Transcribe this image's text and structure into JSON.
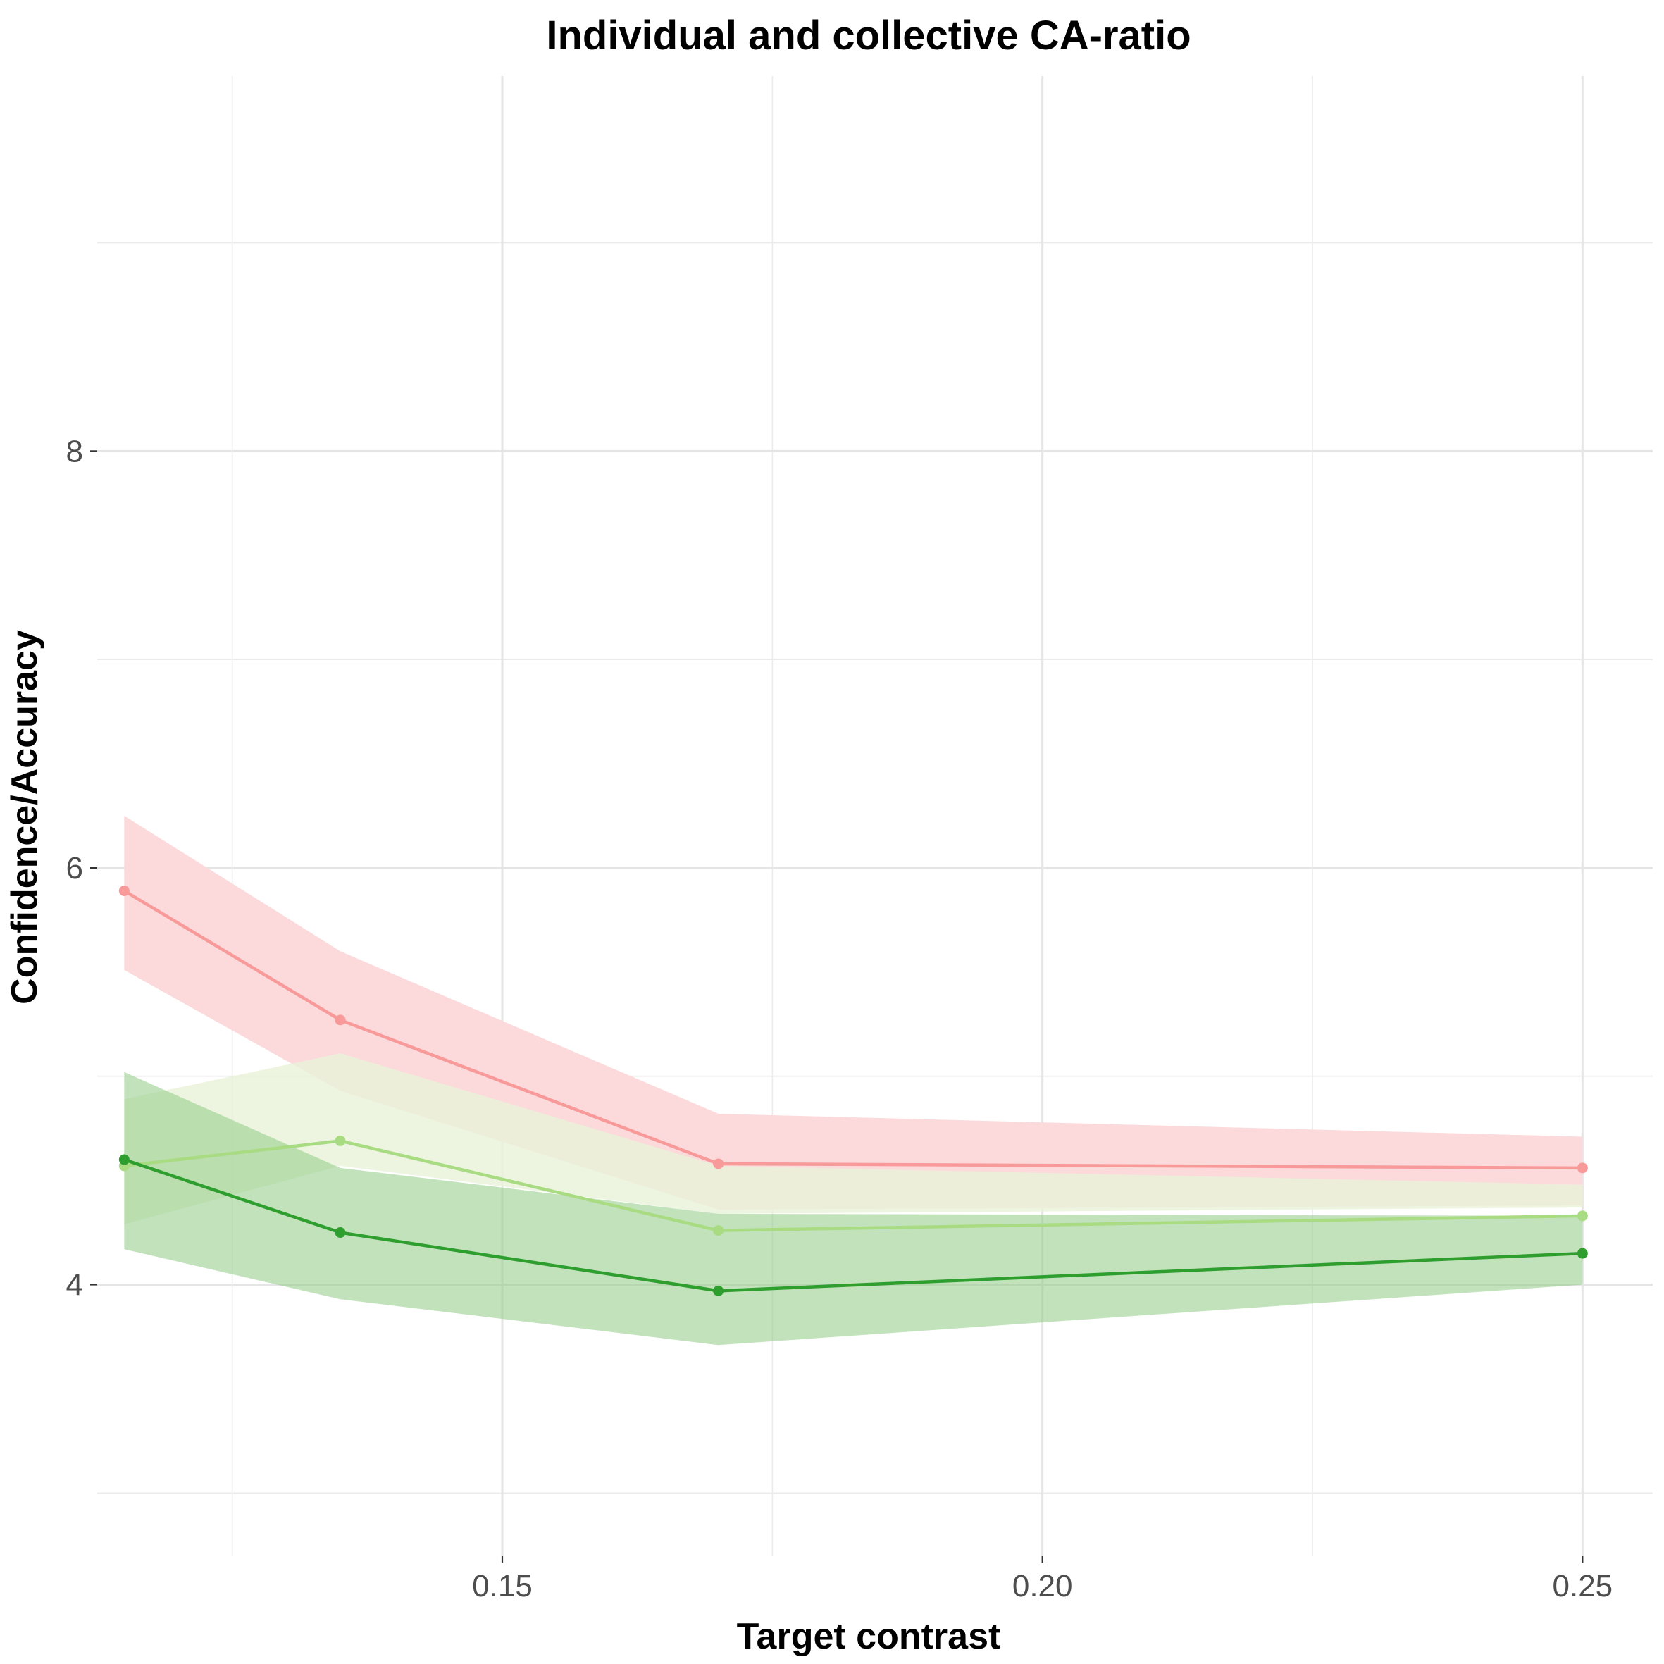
{
  "chart_data": {
    "type": "line",
    "title": "Individual and collective CA-ratio",
    "xlabel": "Target contrast",
    "ylabel": "Confidence/Accuracy",
    "xlim": [
      0.1125,
      0.2565
    ],
    "ylim": [
      2.7,
      9.8
    ],
    "x_ticks": [
      0.15,
      0.2,
      0.25
    ],
    "x_tick_labels": [
      "0.15",
      "0.20",
      "0.25"
    ],
    "x_minor_gridlines": [
      0.125,
      0.175,
      0.225
    ],
    "y_ticks": [
      4,
      6,
      8
    ],
    "y_tick_labels": [
      "4",
      "6",
      "8"
    ],
    "y_minor_gridlines": [
      3,
      5,
      7,
      9
    ],
    "grid": true,
    "legend": "none",
    "x": [
      0.115,
      0.135,
      0.17,
      0.25
    ],
    "series": [
      {
        "color": "#F8999A",
        "band_color": "#FCDADB",
        "values": [
          5.89,
          5.27,
          4.58,
          4.56
        ],
        "lower": [
          5.51,
          4.93,
          4.36,
          4.38
        ],
        "upper": [
          6.25,
          5.6,
          4.82,
          4.71
        ]
      },
      {
        "color": "#A8DB82",
        "band_color": "#E8F3D9",
        "band_opacity": 0.8,
        "values": [
          4.57,
          4.69,
          4.26,
          4.33
        ],
        "lower": [
          4.29,
          4.57,
          4.34,
          4.37
        ],
        "upper": [
          4.89,
          5.11,
          4.57,
          4.48
        ]
      },
      {
        "color": "#2E9E2E",
        "band_color": "#8FCB85",
        "band_opacity": 0.55,
        "values": [
          4.6,
          4.25,
          3.97,
          4.15
        ],
        "lower": [
          4.17,
          3.93,
          3.71,
          4.0
        ],
        "upper": [
          5.02,
          4.56,
          4.34,
          4.33
        ]
      }
    ]
  }
}
